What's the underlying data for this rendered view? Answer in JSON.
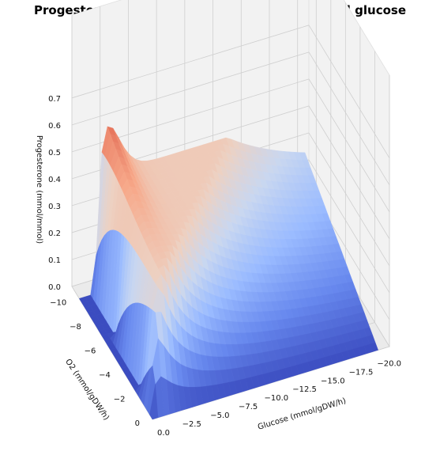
{
  "chart_data": {
    "type": "surface3d",
    "title": "Progesterone yield as a function of oxygen and glucose",
    "xlabel": "Glucose (mmol/gDW/h)",
    "ylabel": "O2 (mmol/gDW/h)",
    "zlabel": "Progesterone (mmol/mmol)",
    "x_ticks": [
      "0.0",
      "−2.5",
      "−5.0",
      "−7.5",
      "−10.0",
      "−12.5",
      "−15.0",
      "−17.5",
      "−20.0"
    ],
    "y_ticks": [
      "0",
      "−2",
      "−4",
      "−6",
      "−8",
      "−10"
    ],
    "z_ticks": [
      "0.0",
      "0.1",
      "0.2",
      "0.3",
      "0.4",
      "0.5",
      "0.6",
      "0.7"
    ],
    "xlim": [
      0,
      -21
    ],
    "ylim": [
      0,
      -11
    ],
    "zlim": [
      0,
      0.72
    ],
    "colormap": "coolwarm",
    "cmap_stops": [
      "#3b4cc0",
      "#6788ee",
      "#9abbff",
      "#c9d7f0",
      "#edd1c2",
      "#f7a889",
      "#e26952",
      "#b40426"
    ],
    "peak": {
      "glucose": -1.5,
      "o2": -10.0,
      "progesterone": 0.72
    },
    "plateau_level": 0.43
  }
}
